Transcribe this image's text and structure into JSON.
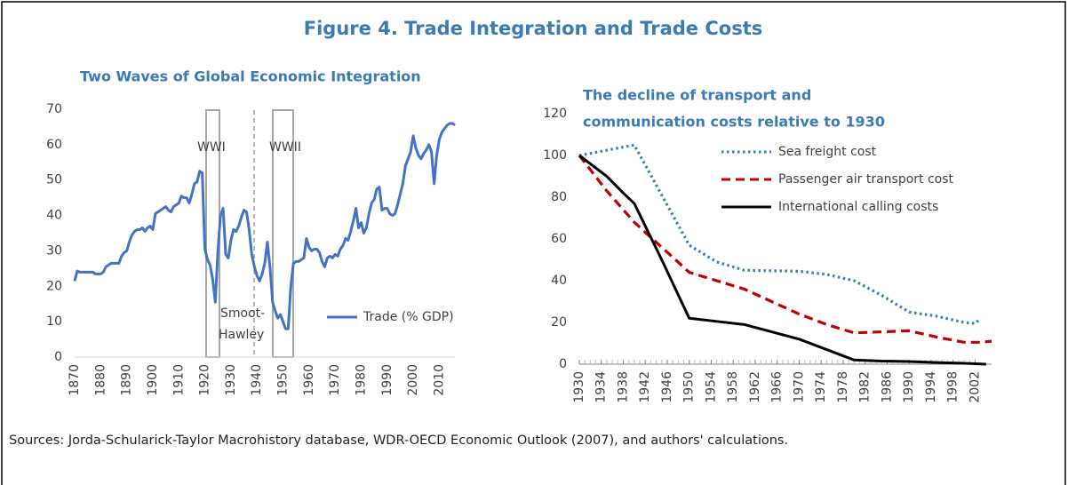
{
  "title": "Figure 4. Trade Integration and Trade Costs",
  "sources": "Sources: Jorda-Schularick-Taylor Macrohistory database, WDR-OECD Economic Outlook (2007), and authors' calculations.",
  "chart_data": [
    {
      "type": "line",
      "title": "Two Waves of Global Economic Integration",
      "annotations": [
        "WWI",
        "WWII",
        "Smoot-",
        "Hawley"
      ],
      "xlim": [
        1870,
        2016
      ],
      "xticks": [
        1870,
        1880,
        1890,
        1900,
        1910,
        1920,
        1930,
        1940,
        1950,
        1960,
        1970,
        1980,
        1990,
        2000,
        2010
      ],
      "ylim": [
        0,
        70
      ],
      "yticks": [
        0,
        10,
        20,
        30,
        40,
        50,
        60,
        70
      ],
      "legend": "lower right",
      "x": [
        1870,
        1871,
        1872,
        1873,
        1874,
        1875,
        1876,
        1877,
        1878,
        1879,
        1880,
        1881,
        1882,
        1883,
        1884,
        1885,
        1886,
        1887,
        1888,
        1889,
        1890,
        1891,
        1892,
        1893,
        1894,
        1895,
        1896,
        1897,
        1898,
        1899,
        1900,
        1901,
        1902,
        1903,
        1904,
        1905,
        1906,
        1907,
        1908,
        1909,
        1910,
        1911,
        1912,
        1913,
        1914,
        1915,
        1916,
        1917,
        1918,
        1919,
        1920,
        1921,
        1922,
        1923,
        1924,
        1925,
        1926,
        1927,
        1928,
        1929,
        1930,
        1931,
        1932,
        1933,
        1934,
        1935,
        1936,
        1937,
        1938,
        1939,
        1940,
        1941,
        1942,
        1943,
        1944,
        1945,
        1946,
        1947,
        1948,
        1949,
        1950,
        1951,
        1952,
        1953,
        1954,
        1955,
        1956,
        1957,
        1958,
        1959,
        1960,
        1961,
        1962,
        1963,
        1964,
        1965,
        1966,
        1967,
        1968,
        1969,
        1970,
        1971,
        1972,
        1973,
        1974,
        1975,
        1976,
        1977,
        1978,
        1979,
        1980,
        1981,
        1982,
        1983,
        1984,
        1985,
        1986,
        1987,
        1988,
        1989,
        1990,
        1991,
        1992,
        1993,
        1994,
        1995,
        1996,
        1997,
        1998,
        1999,
        2000,
        2001,
        2002,
        2003,
        2004,
        2005,
        2006,
        2007,
        2008,
        2009,
        2010,
        2011,
        2012,
        2013,
        2014,
        2015,
        2016
      ],
      "series": [
        {
          "name": "Trade (% GDP)",
          "color": "#4472c4",
          "dash": "solid",
          "values": [
            21.5,
            24.3,
            24,
            24,
            24,
            24,
            24,
            24,
            23.5,
            23.5,
            23.5,
            24,
            25.5,
            26,
            26.5,
            26.5,
            26.5,
            26.5,
            28.5,
            29.5,
            30,
            32.5,
            34.5,
            35.5,
            36,
            36,
            36.5,
            35.5,
            36.5,
            37,
            36,
            40.5,
            41,
            41.5,
            42,
            42.5,
            41.5,
            41,
            42.5,
            43,
            43.5,
            45.5,
            45,
            45,
            43.5,
            46,
            49,
            49.5,
            52.5,
            52,
            30.5,
            27.5,
            26,
            22,
            15.5,
            30,
            40,
            42,
            29,
            28,
            33,
            36,
            35.5,
            37,
            39.5,
            41.5,
            41,
            36,
            29,
            25.5,
            23,
            21.5,
            23.5,
            26.5,
            32.5,
            25.5,
            15.5,
            13,
            11,
            12,
            10,
            8,
            8,
            20,
            26.5,
            27,
            27,
            27.5,
            28,
            33.5,
            31,
            30,
            30.5,
            30.5,
            29.5,
            27,
            25.5,
            28,
            28.5,
            28,
            29,
            28.5,
            30.5,
            31.5,
            33.5,
            33,
            35.5,
            38.5,
            42,
            36.5,
            38,
            35,
            36.5,
            40.5,
            43.5,
            44.5,
            47.5,
            48,
            41.5,
            42,
            42,
            40.5,
            40,
            40.5,
            43,
            46,
            49,
            54,
            56,
            58,
            62.5,
            59,
            57,
            56,
            57.5,
            58.5,
            60,
            58,
            49,
            57,
            61.5,
            63.5,
            64.5,
            65.5,
            66,
            66,
            65.5
          ]
        }
      ]
    },
    {
      "type": "line",
      "title": [
        "The decline of transport and",
        "communication costs relative to 1930"
      ],
      "xlim": [
        1930,
        2005
      ],
      "xticks": [
        1930,
        1934,
        1938,
        1942,
        1946,
        1950,
        1954,
        1958,
        1962,
        1966,
        1970,
        1974,
        1978,
        1982,
        1986,
        1990,
        1994,
        1998,
        2002
      ],
      "ylim": [
        0,
        120
      ],
      "yticks": [
        0,
        20,
        40,
        60,
        80,
        100,
        120
      ],
      "legend": "upper right",
      "series": [
        {
          "name": "Sea freight cost",
          "color": "#3a7db8",
          "dash": "dotted",
          "x": [
            1930,
            1940,
            1950,
            1955,
            1960,
            1970,
            1975,
            1980,
            1985,
            1990,
            1995,
            2000,
            2002,
            2003
          ],
          "values": [
            100,
            105,
            57,
            49,
            45,
            44.5,
            43,
            40,
            33,
            25,
            23,
            20,
            19.5,
            22
          ]
        },
        {
          "name": "Passenger air transport cost",
          "color": "#c00000",
          "dash": "dashed",
          "x": [
            1930,
            1935,
            1940,
            1945,
            1950,
            1955,
            1960,
            1965,
            1970,
            1975,
            1980,
            1985,
            1990,
            1995,
            2000,
            2003,
            2005
          ],
          "values": [
            100,
            83,
            68,
            56,
            44,
            40,
            36,
            30,
            24,
            19,
            15,
            15.5,
            16,
            13,
            10.5,
            10.5,
            11
          ]
        },
        {
          "name": "International calling costs",
          "color": "#000000",
          "dash": "solid",
          "x": [
            1930,
            1935,
            1938,
            1940,
            1945,
            1950,
            1955,
            1960,
            1965,
            1970,
            1975,
            1980,
            1985,
            1990,
            1995,
            2000,
            2004
          ],
          "values": [
            100,
            90,
            82,
            77,
            50,
            22,
            20.5,
            19,
            15.5,
            12,
            7,
            2,
            1.5,
            1.3,
            0.8,
            0.4,
            0
          ]
        }
      ]
    }
  ]
}
